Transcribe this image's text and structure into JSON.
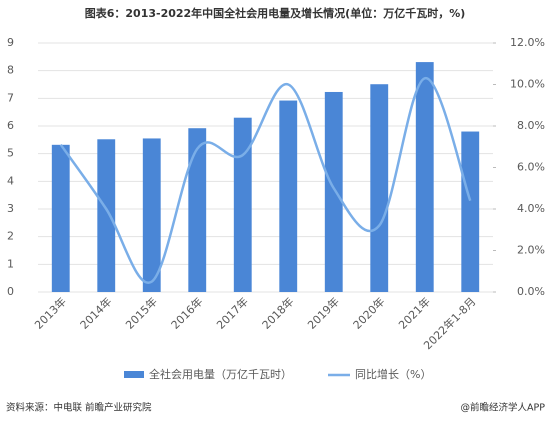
{
  "chart_data": {
    "type": "bar-line",
    "title": "图表6：2013-2022年中国全社会用电量及增长情况(单位：万亿千瓦时，%)",
    "categories": [
      "2013年",
      "2014年",
      "2015年",
      "2016年",
      "2017年",
      "2018年",
      "2019年",
      "2020年",
      "2021年",
      "2022年1-8月"
    ],
    "series": [
      {
        "name": "全社会用电量（万亿千瓦时）",
        "color": "#4a86d6",
        "values": [
          5.32,
          5.52,
          5.55,
          5.92,
          6.3,
          6.92,
          7.23,
          7.51,
          8.31,
          5.8
        ]
      },
      {
        "name": "同比增长（%）",
        "color": "#7aaee8",
        "axis": "y2",
        "values": [
          7.1,
          4.0,
          0.5,
          6.9,
          6.6,
          10.0,
          5.0,
          3.2,
          10.3,
          4.4
        ]
      }
    ],
    "ylim": [
      0,
      9
    ],
    "yticks": [
      0,
      1,
      2,
      3,
      4,
      5,
      6,
      7,
      8,
      9
    ],
    "y2lim": [
      0,
      12
    ],
    "y2ticks": [
      {
        "value": 0,
        "label": "0.0%"
      },
      {
        "value": 2,
        "label": "2.0%"
      },
      {
        "value": 4,
        "label": "4.0%"
      },
      {
        "value": 6,
        "label": "6.0%"
      },
      {
        "value": 8,
        "label": "8.0%"
      },
      {
        "value": 10,
        "label": "10.0%"
      },
      {
        "value": 12,
        "label": "12.0%"
      }
    ],
    "source": "资料来源：中电联 前瞻产业研究院",
    "credit": "@前瞻经济学人APP"
  }
}
